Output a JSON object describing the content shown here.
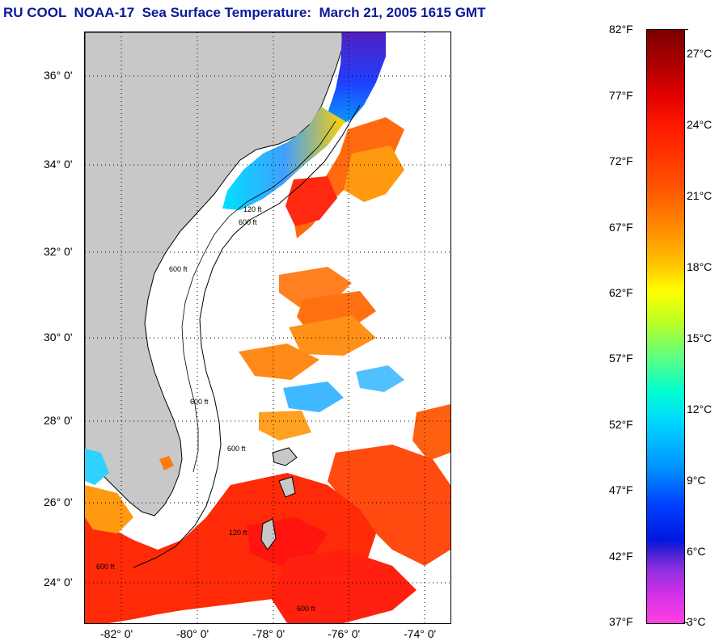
{
  "title": "RU COOL  NOAA-17  Sea Surface Temperature:  March 21, 2005 1615 GMT",
  "map": {
    "lat_labels": [
      "36° 0'",
      "34° 0'",
      "32° 0'",
      "30° 0'",
      "28° 0'",
      "26° 0'",
      "24° 0'"
    ],
    "lon_labels": [
      "-82° 0'",
      "-80° 0'",
      "-78° 0'",
      "-76° 0'",
      "-74° 0'"
    ],
    "contour_labels": [
      "600 ft",
      "120 ft",
      "600 ft",
      "600 ft",
      "600 ft",
      "120 ft",
      "600 ft",
      "600 ft"
    ],
    "colors": {
      "land": "#c8c8c8",
      "cloud": "#ffffff",
      "warm": "#ff3a00",
      "cool": "#00c8ff",
      "cold": "#2040ff"
    }
  },
  "colorbar": {
    "fahrenheit": [
      "82°F",
      "77°F",
      "72°F",
      "67°F",
      "62°F",
      "57°F",
      "52°F",
      "47°F",
      "42°F",
      "37°F"
    ],
    "celsius": [
      "27°C",
      "24°C",
      "21°C",
      "18°C",
      "15°C",
      "12°C",
      "9°C",
      "6°C",
      "3°C"
    ]
  }
}
